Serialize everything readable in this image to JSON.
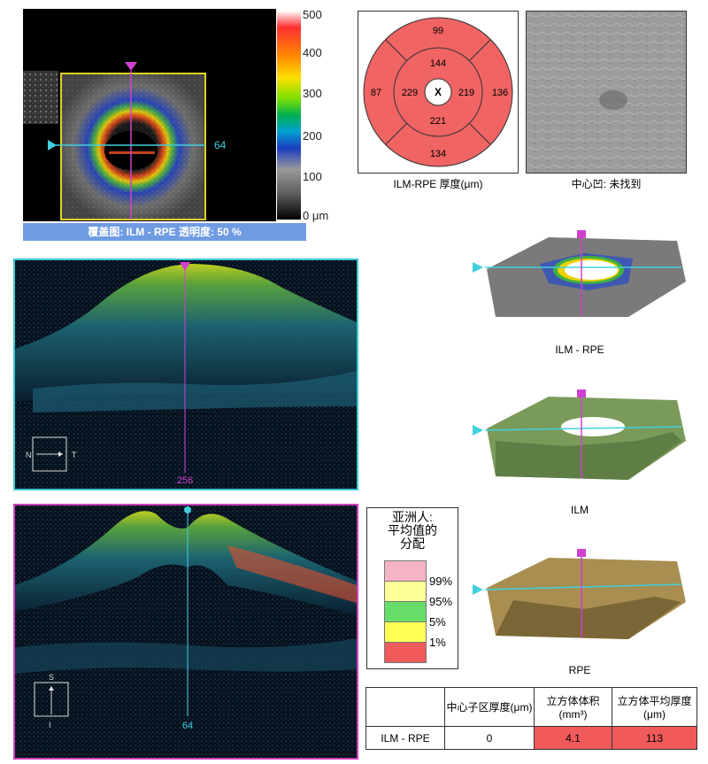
{
  "overlay": {
    "caption": "覆盖图: ILM - RPE  透明度: 50 %",
    "scan_marker": "64",
    "colorbar_ticks": [
      "500",
      "400",
      "300",
      "200",
      "100",
      "0 μm"
    ]
  },
  "thickness_map": {
    "caption": "ILM-RPE 厚度(μm)",
    "center_mark": "X",
    "values": {
      "outer_superior": "99",
      "outer_nasal": "87",
      "outer_temporal": "136",
      "outer_inferior": "134",
      "inner_superior": "144",
      "inner_nasal": "229",
      "inner_temporal": "219",
      "inner_inferior": "221"
    },
    "fill_color": "#f06464"
  },
  "fovea": {
    "caption": "中心凹: 未找到"
  },
  "bscan_horizontal": {
    "position_label": "256",
    "orient_left": "N",
    "orient_right": "T"
  },
  "bscan_vertical": {
    "position_label": "64",
    "orient_top": "S",
    "orient_bottom": "I"
  },
  "legend": {
    "title_lines": [
      "亚洲人:",
      "平均值的",
      "分配"
    ],
    "items": [
      {
        "label": "99%",
        "color": "#f4b4c4"
      },
      {
        "label": "95%",
        "color": "#ffff99"
      },
      {
        "label": "5%",
        "color": "#66dd66"
      },
      {
        "label": "1%",
        "color": "#ffff55"
      },
      {
        "label": "",
        "color": "#f05a5a"
      }
    ]
  },
  "surfaces": [
    {
      "label": "ILM - RPE"
    },
    {
      "label": "ILM"
    },
    {
      "label": "RPE"
    }
  ],
  "stats_table": {
    "headers": [
      "",
      "中心子区厚度(μm)",
      "立方体体积(mm³)",
      "立方体平均厚度(μm)"
    ],
    "row": {
      "name": "ILM - RPE",
      "central": "0",
      "volume": "4.1",
      "avg": "113"
    }
  }
}
